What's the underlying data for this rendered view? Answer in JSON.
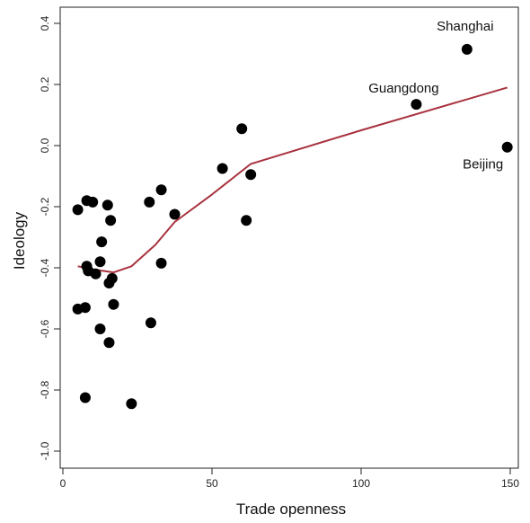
{
  "chart_data": {
    "type": "scatter",
    "xlabel": "Trade openness",
    "ylabel": "Ideology",
    "xlim": [
      0,
      150
    ],
    "ylim": [
      -1.0,
      0.4
    ],
    "x_ticks": [
      0,
      50,
      100,
      150
    ],
    "x_tick_labels": [
      "0",
      "50",
      "100",
      "150"
    ],
    "y_ticks": [
      -1.0,
      -0.8,
      -0.6,
      -0.4,
      -0.2,
      0.0,
      0.2,
      0.4
    ],
    "y_tick_labels": [
      "-1.0",
      "-0.8",
      "-0.6",
      "-0.4",
      "-0.2",
      "0.0",
      "0.2",
      "0.4"
    ],
    "grid": false,
    "point_color": "#000000",
    "line_color": "#a8323e",
    "points": [
      {
        "x": 5,
        "y": -0.21
      },
      {
        "x": 8,
        "y": -0.18
      },
      {
        "x": 10,
        "y": -0.185
      },
      {
        "x": 15,
        "y": -0.195
      },
      {
        "x": 16,
        "y": -0.245
      },
      {
        "x": 13,
        "y": -0.315
      },
      {
        "x": 12.5,
        "y": -0.38
      },
      {
        "x": 8,
        "y": -0.395
      },
      {
        "x": 8.5,
        "y": -0.41
      },
      {
        "x": 11,
        "y": -0.42
      },
      {
        "x": 16.5,
        "y": -0.435
      },
      {
        "x": 15.5,
        "y": -0.45
      },
      {
        "x": 5,
        "y": -0.535
      },
      {
        "x": 7.5,
        "y": -0.53
      },
      {
        "x": 17,
        "y": -0.52
      },
      {
        "x": 12.5,
        "y": -0.6
      },
      {
        "x": 15.5,
        "y": -0.645
      },
      {
        "x": 7.5,
        "y": -0.825
      },
      {
        "x": 23,
        "y": -0.845
      },
      {
        "x": 29.5,
        "y": -0.58
      },
      {
        "x": 29,
        "y": -0.185
      },
      {
        "x": 33,
        "y": -0.145
      },
      {
        "x": 37.5,
        "y": -0.225
      },
      {
        "x": 33,
        "y": -0.385
      },
      {
        "x": 53.5,
        "y": -0.075
      },
      {
        "x": 60,
        "y": 0.055
      },
      {
        "x": 63,
        "y": -0.095
      },
      {
        "x": 61.5,
        "y": -0.245
      },
      {
        "x": 118.5,
        "y": 0.135,
        "label": "Guangdong"
      },
      {
        "x": 135.5,
        "y": 0.315,
        "label": "Shanghai"
      },
      {
        "x": 149,
        "y": -0.005,
        "label": "Beijing"
      }
    ],
    "fit_line": [
      {
        "x": 5,
        "y": -0.395
      },
      {
        "x": 10,
        "y": -0.405
      },
      {
        "x": 17,
        "y": -0.415
      },
      {
        "x": 23,
        "y": -0.395
      },
      {
        "x": 31,
        "y": -0.325
      },
      {
        "x": 37.5,
        "y": -0.25
      },
      {
        "x": 50,
        "y": -0.16
      },
      {
        "x": 63,
        "y": -0.06
      },
      {
        "x": 100,
        "y": 0.05
      },
      {
        "x": 149,
        "y": 0.19
      }
    ]
  }
}
